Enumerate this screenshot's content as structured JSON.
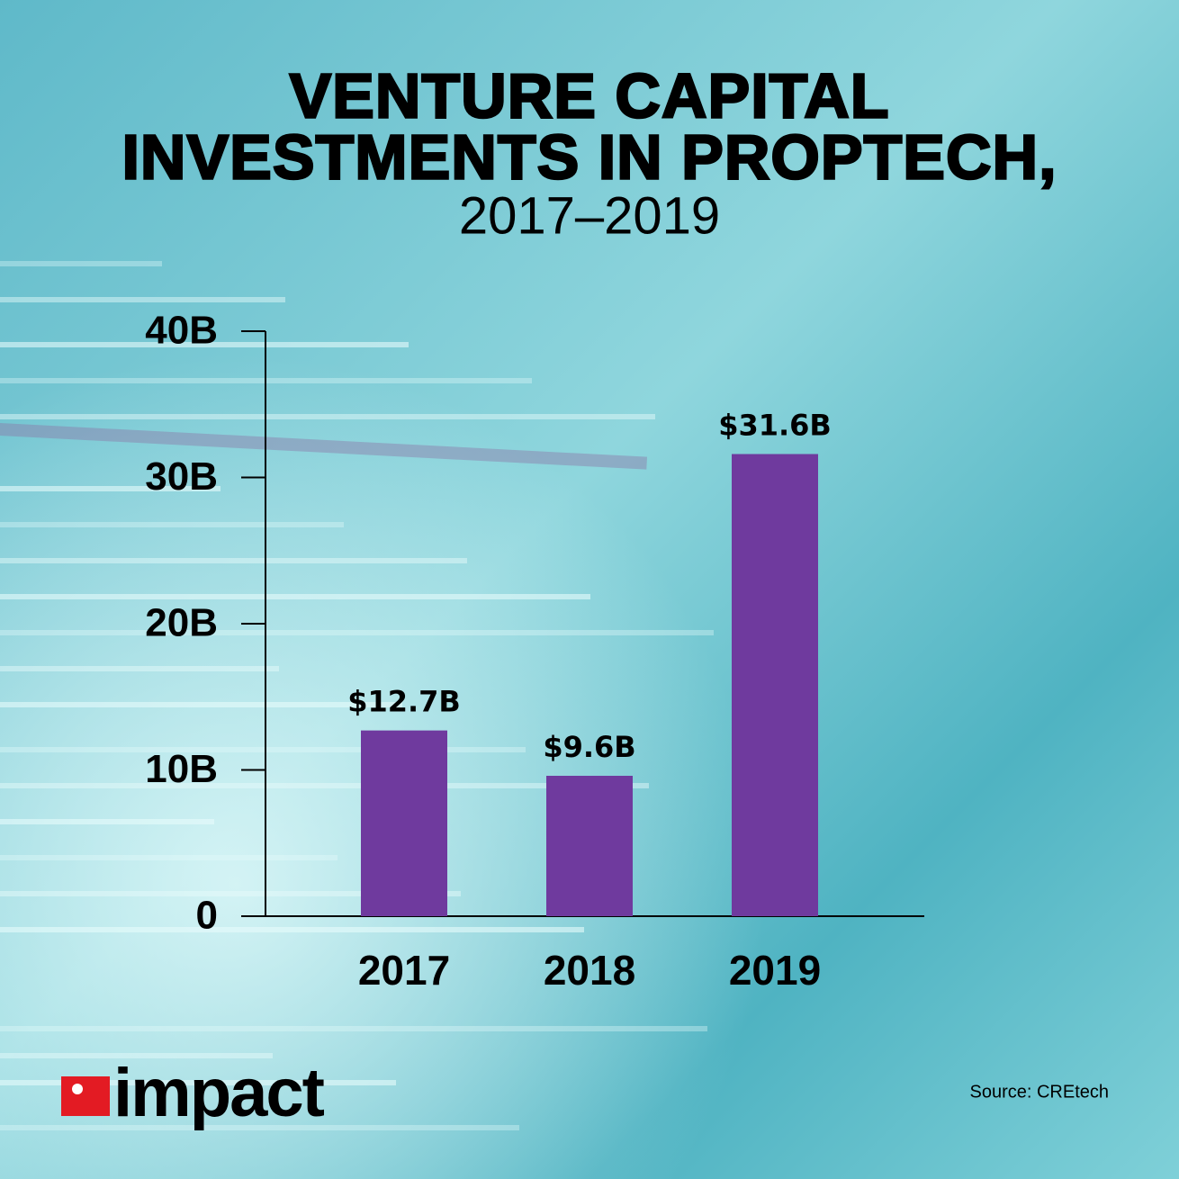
{
  "chart_data": {
    "type": "bar",
    "title": [
      "VENTURE CAPITAL",
      "INVESTMENTS IN PROPTECH,"
    ],
    "subtitle": "2017–2019",
    "categories": [
      "2017",
      "2018",
      "2019"
    ],
    "values": [
      12.7,
      9.6,
      31.6
    ],
    "value_labels": [
      "$12.7B",
      "$9.6B",
      "$31.6B"
    ],
    "color": "#6f3a9e",
    "ylim": [
      0,
      40
    ],
    "yticks": [
      0,
      {
        "value": 10,
        "label": "10B"
      },
      {
        "value": 20,
        "label": "20B"
      },
      {
        "value": 30,
        "label": "30B"
      },
      {
        "value": 40,
        "label": "40B"
      }
    ],
    "grid": false,
    "source": "Source: CREtech"
  },
  "logo": "impact"
}
